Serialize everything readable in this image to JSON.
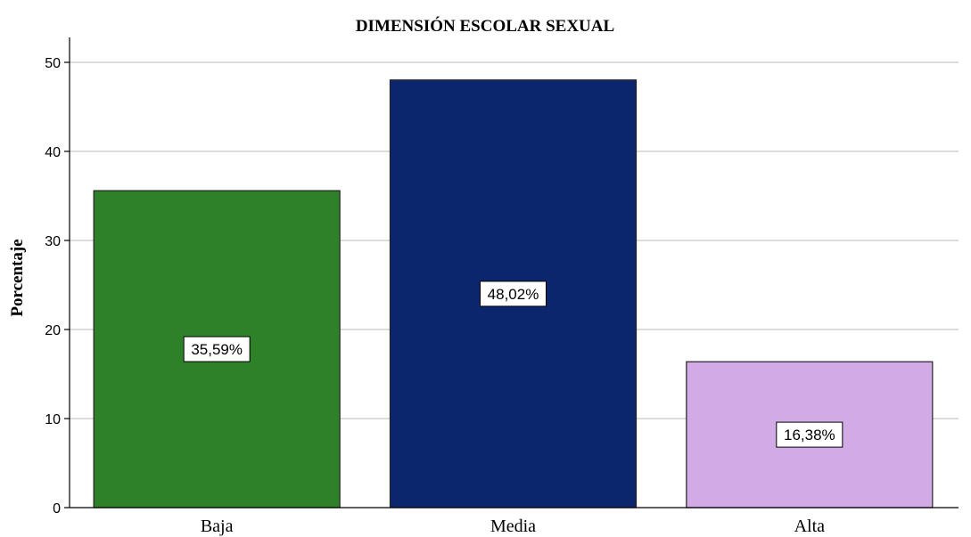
{
  "chart_data": {
    "type": "bar",
    "title": "DIMENSIÓN ESCOLAR SEXUAL",
    "xlabel": "",
    "ylabel": "Porcentaje",
    "categories": [
      "Baja",
      "Media",
      "Alta"
    ],
    "values": [
      35.59,
      48.02,
      16.38
    ],
    "data_labels": [
      "35,59%",
      "48,02%",
      "16,38%"
    ],
    "colors": [
      "#2e8129",
      "#0c266e",
      "#d1aae6"
    ],
    "ylim": [
      0,
      52
    ],
    "yticks": [
      0,
      10,
      20,
      30,
      40,
      50
    ],
    "grid": true
  }
}
